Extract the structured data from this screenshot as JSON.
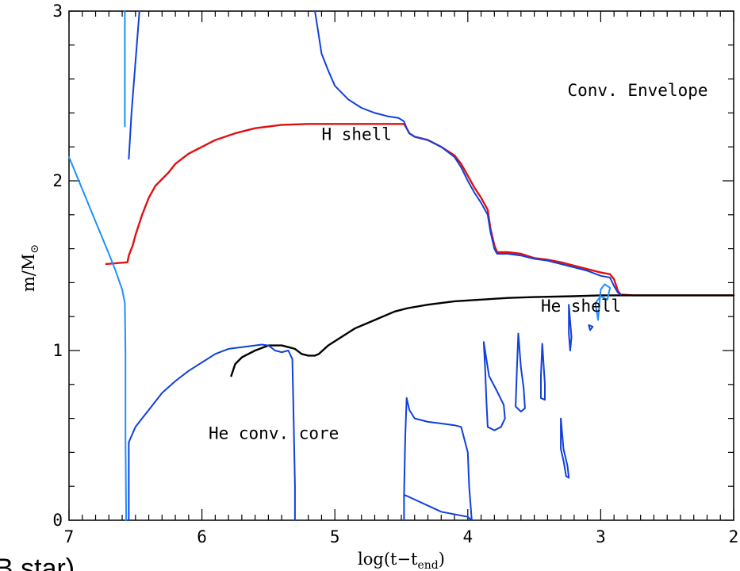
{
  "chart_data": {
    "type": "line",
    "xlabel_main": "log(t−t",
    "xlabel_sub": "end",
    "xlabel_close": ")",
    "ylabel_main": "m/M",
    "ylabel_sub": "⊙",
    "xlim": [
      7,
      2
    ],
    "ylim": [
      0,
      3
    ],
    "x_ticks": [
      7,
      6,
      5,
      4,
      3,
      2
    ],
    "y_ticks": [
      0,
      1,
      2,
      3
    ],
    "x_tick_labels": [
      "7",
      "6",
      "5",
      "4",
      "3",
      "2"
    ],
    "y_tick_labels": [
      "0",
      "1",
      "2",
      "3"
    ],
    "grid": false,
    "annotations": [
      {
        "id": "conv-envelope",
        "text": "Conv. Envelope",
        "x": 3.25,
        "y": 2.5
      },
      {
        "id": "h-shell",
        "text": "H shell",
        "x": 5.1,
        "y": 2.24
      },
      {
        "id": "he-shell",
        "text": "He shell",
        "x": 3.45,
        "y": 1.23
      },
      {
        "id": "he-conv-core",
        "text": "He conv. core",
        "x": 5.95,
        "y": 0.48
      }
    ],
    "partial_text": "B star)",
    "colors": {
      "h_shell": "#e01010",
      "he_shell": "#000000",
      "convective": "#1040dd",
      "convective_light": "#1e90ff"
    },
    "series": [
      {
        "id": "h-shell-line",
        "color": "h_shell",
        "points": [
          [
            6.72,
            1.51
          ],
          [
            6.56,
            1.52
          ],
          [
            6.55,
            1.56
          ],
          [
            6.52,
            1.62
          ],
          [
            6.5,
            1.68
          ],
          [
            6.45,
            1.8
          ],
          [
            6.4,
            1.9
          ],
          [
            6.35,
            1.97
          ],
          [
            6.3,
            2.01
          ],
          [
            6.25,
            2.05
          ],
          [
            6.2,
            2.1
          ],
          [
            6.1,
            2.16
          ],
          [
            6.0,
            2.2
          ],
          [
            5.9,
            2.24
          ],
          [
            5.75,
            2.28
          ],
          [
            5.6,
            2.31
          ],
          [
            5.4,
            2.33
          ],
          [
            5.2,
            2.335
          ],
          [
            5.0,
            2.335
          ],
          [
            4.8,
            2.335
          ],
          [
            4.6,
            2.335
          ],
          [
            4.48,
            2.335
          ],
          [
            4.46,
            2.31
          ],
          [
            4.44,
            2.28
          ],
          [
            4.4,
            2.26
          ],
          [
            4.3,
            2.24
          ],
          [
            4.2,
            2.2
          ],
          [
            4.1,
            2.15
          ],
          [
            4.05,
            2.1
          ],
          [
            4.0,
            2.03
          ],
          [
            3.95,
            1.96
          ],
          [
            3.9,
            1.9
          ],
          [
            3.85,
            1.83
          ],
          [
            3.83,
            1.72
          ],
          [
            3.8,
            1.62
          ],
          [
            3.78,
            1.58
          ],
          [
            3.7,
            1.58
          ],
          [
            3.6,
            1.57
          ],
          [
            3.5,
            1.545
          ],
          [
            3.4,
            1.535
          ],
          [
            3.3,
            1.52
          ],
          [
            3.2,
            1.5
          ],
          [
            3.1,
            1.48
          ],
          [
            3.0,
            1.46
          ],
          [
            2.93,
            1.45
          ],
          [
            2.9,
            1.42
          ],
          [
            2.87,
            1.35
          ],
          [
            2.85,
            1.33
          ],
          [
            2.75,
            1.325
          ],
          [
            2.5,
            1.325
          ],
          [
            2.0,
            1.325
          ]
        ]
      },
      {
        "id": "he-shell-line",
        "color": "he_shell",
        "points": [
          [
            5.78,
            0.85
          ],
          [
            5.75,
            0.92
          ],
          [
            5.7,
            0.96
          ],
          [
            5.6,
            1.0
          ],
          [
            5.5,
            1.03
          ],
          [
            5.4,
            1.03
          ],
          [
            5.35,
            1.02
          ],
          [
            5.3,
            1.01
          ],
          [
            5.25,
            0.98
          ],
          [
            5.2,
            0.97
          ],
          [
            5.15,
            0.97
          ],
          [
            5.12,
            0.98
          ],
          [
            5.05,
            1.03
          ],
          [
            4.95,
            1.08
          ],
          [
            4.85,
            1.13
          ],
          [
            4.7,
            1.18
          ],
          [
            4.55,
            1.23
          ],
          [
            4.45,
            1.25
          ],
          [
            4.3,
            1.27
          ],
          [
            4.1,
            1.29
          ],
          [
            3.9,
            1.3
          ],
          [
            3.7,
            1.31
          ],
          [
            3.5,
            1.315
          ],
          [
            3.2,
            1.32
          ],
          [
            3.0,
            1.325
          ],
          [
            2.8,
            1.325
          ],
          [
            2.5,
            1.325
          ],
          [
            2.0,
            1.325
          ]
        ]
      },
      {
        "id": "envelope-base-line",
        "color": "convective",
        "points": [
          [
            5.15,
            3.0
          ],
          [
            5.12,
            2.85
          ],
          [
            5.1,
            2.75
          ],
          [
            5.05,
            2.65
          ],
          [
            5.0,
            2.56
          ],
          [
            4.9,
            2.48
          ],
          [
            4.8,
            2.43
          ],
          [
            4.7,
            2.4
          ],
          [
            4.6,
            2.38
          ],
          [
            4.52,
            2.37
          ],
          [
            4.48,
            2.35
          ],
          [
            4.46,
            2.31
          ],
          [
            4.44,
            2.28
          ],
          [
            4.4,
            2.26
          ],
          [
            4.3,
            2.24
          ],
          [
            4.2,
            2.2
          ],
          [
            4.1,
            2.14
          ],
          [
            4.05,
            2.08
          ],
          [
            4.0,
            2.0
          ],
          [
            3.95,
            1.93
          ],
          [
            3.9,
            1.87
          ],
          [
            3.85,
            1.8
          ],
          [
            3.83,
            1.7
          ],
          [
            3.8,
            1.6
          ],
          [
            3.78,
            1.57
          ],
          [
            3.7,
            1.57
          ],
          [
            3.6,
            1.56
          ],
          [
            3.5,
            1.54
          ],
          [
            3.4,
            1.53
          ],
          [
            3.3,
            1.51
          ],
          [
            3.2,
            1.49
          ],
          [
            3.1,
            1.47
          ],
          [
            3.0,
            1.44
          ],
          [
            2.93,
            1.43
          ],
          [
            2.9,
            1.38
          ],
          [
            2.87,
            1.34
          ],
          [
            2.85,
            1.33
          ]
        ]
      },
      {
        "id": "envelope-early-line",
        "color": "convective_light",
        "points": [
          [
            7.0,
            2.14
          ],
          [
            6.9,
            1.95
          ],
          [
            6.8,
            1.76
          ],
          [
            6.7,
            1.57
          ],
          [
            6.65,
            1.47
          ],
          [
            6.6,
            1.36
          ],
          [
            6.58,
            1.28
          ],
          [
            6.575,
            1.0
          ],
          [
            6.575,
            0.5
          ],
          [
            6.57,
            0.0
          ]
        ]
      },
      {
        "id": "spike-left",
        "color": "convective_light",
        "points": [
          [
            6.58,
            2.32
          ],
          [
            6.58,
            2.8
          ],
          [
            6.58,
            3.0
          ]
        ]
      },
      {
        "id": "spike-right",
        "color": "convective",
        "points": [
          [
            6.55,
            2.13
          ],
          [
            6.53,
            2.4
          ],
          [
            6.5,
            2.7
          ],
          [
            6.47,
            3.0
          ]
        ]
      },
      {
        "id": "he-core-line",
        "color": "convective",
        "points": [
          [
            6.55,
            0.0
          ],
          [
            6.55,
            0.46
          ],
          [
            6.5,
            0.55
          ],
          [
            6.4,
            0.65
          ],
          [
            6.3,
            0.75
          ],
          [
            6.2,
            0.82
          ],
          [
            6.1,
            0.88
          ],
          [
            6.0,
            0.93
          ],
          [
            5.9,
            0.98
          ],
          [
            5.8,
            1.01
          ],
          [
            5.7,
            1.02
          ],
          [
            5.6,
            1.03
          ],
          [
            5.55,
            1.035
          ],
          [
            5.5,
            1.03
          ],
          [
            5.45,
            1.0
          ],
          [
            5.4,
            0.99
          ],
          [
            5.35,
            1.0
          ],
          [
            5.32,
            0.95
          ],
          [
            5.31,
            0.6
          ],
          [
            5.3,
            0.2
          ],
          [
            5.3,
            0.0
          ]
        ]
      },
      {
        "id": "blob-4-5",
        "color": "convective",
        "points": [
          [
            4.48,
            0.0
          ],
          [
            4.48,
            0.15
          ],
          [
            4.47,
            0.5
          ],
          [
            4.46,
            0.72
          ],
          [
            4.44,
            0.65
          ],
          [
            4.4,
            0.6
          ],
          [
            4.3,
            0.58
          ],
          [
            4.2,
            0.57
          ],
          [
            4.1,
            0.56
          ],
          [
            4.05,
            0.55
          ],
          [
            4.0,
            0.4
          ],
          [
            3.99,
            0.2
          ],
          [
            3.97,
            0.0
          ],
          [
            4.0,
            0.02
          ],
          [
            4.2,
            0.05
          ],
          [
            4.45,
            0.14
          ],
          [
            4.48,
            0.15
          ]
        ]
      },
      {
        "id": "blob-3-85",
        "color": "convective",
        "points": [
          [
            3.88,
            1.05
          ],
          [
            3.87,
            0.9
          ],
          [
            3.86,
            0.7
          ],
          [
            3.85,
            0.55
          ],
          [
            3.8,
            0.53
          ],
          [
            3.75,
            0.55
          ],
          [
            3.72,
            0.6
          ],
          [
            3.73,
            0.68
          ],
          [
            3.78,
            0.76
          ],
          [
            3.84,
            0.85
          ],
          [
            3.88,
            1.05
          ]
        ]
      },
      {
        "id": "blob-3-6",
        "color": "convective",
        "points": [
          [
            3.62,
            1.1
          ],
          [
            3.63,
            0.9
          ],
          [
            3.64,
            0.67
          ],
          [
            3.6,
            0.64
          ],
          [
            3.57,
            0.66
          ],
          [
            3.58,
            0.78
          ],
          [
            3.6,
            0.9
          ],
          [
            3.62,
            1.1
          ]
        ]
      },
      {
        "id": "blob-3-45",
        "color": "convective",
        "points": [
          [
            3.44,
            1.04
          ],
          [
            3.45,
            0.85
          ],
          [
            3.45,
            0.72
          ],
          [
            3.42,
            0.71
          ],
          [
            3.42,
            0.8
          ],
          [
            3.44,
            1.04
          ]
        ]
      },
      {
        "id": "blob-3-3",
        "color": "convective",
        "points": [
          [
            3.3,
            0.6
          ],
          [
            3.3,
            0.5
          ],
          [
            3.3,
            0.42
          ],
          [
            3.28,
            0.35
          ],
          [
            3.26,
            0.26
          ],
          [
            3.24,
            0.25
          ],
          [
            3.25,
            0.32
          ],
          [
            3.28,
            0.42
          ],
          [
            3.3,
            0.6
          ]
        ]
      },
      {
        "id": "blob-3-25",
        "color": "convective",
        "points": [
          [
            3.24,
            1.27
          ],
          [
            3.24,
            1.1
          ],
          [
            3.23,
            1.0
          ],
          [
            3.22,
            1.08
          ],
          [
            3.24,
            1.27
          ]
        ]
      },
      {
        "id": "blob-3-05",
        "color": "convective",
        "points": [
          [
            3.09,
            1.15
          ],
          [
            3.08,
            1.12
          ],
          [
            3.06,
            1.14
          ],
          [
            3.09,
            1.15
          ]
        ]
      },
      {
        "id": "blob-3-0",
        "color": "convective_light",
        "points": [
          [
            3.04,
            1.28
          ],
          [
            3.02,
            1.18
          ],
          [
            3.0,
            1.36
          ],
          [
            2.97,
            1.39
          ],
          [
            2.93,
            1.37
          ],
          [
            2.95,
            1.3
          ],
          [
            3.0,
            1.32
          ],
          [
            3.04,
            1.28
          ]
        ]
      }
    ]
  }
}
